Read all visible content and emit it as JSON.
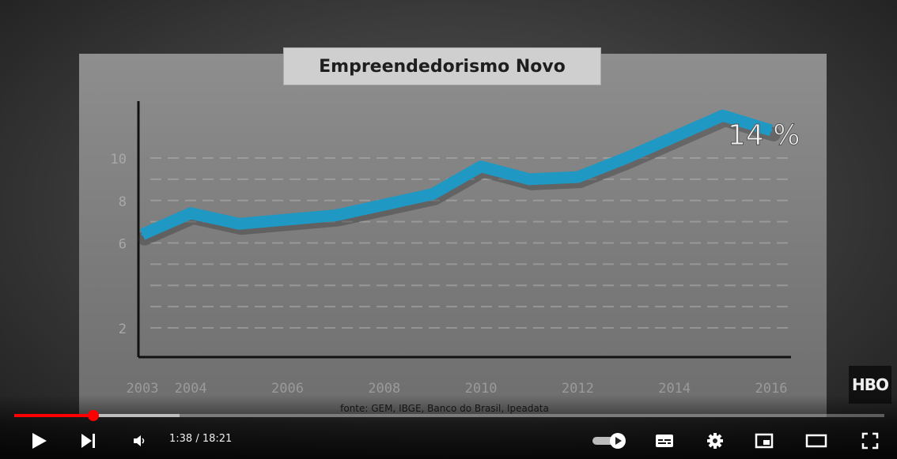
{
  "player": {
    "current_time": "1:38",
    "separator": " / ",
    "duration": "18:21",
    "progress_played": 0.091,
    "progress_buffered": 0.19
  },
  "watermark": {
    "text": "HBO"
  },
  "chart_data": {
    "type": "line",
    "title": "Empreendedorismo Novo",
    "source": "fonte: GEM, IBGE, Banco do Brasil, Ipeadata",
    "annotation": "14 %",
    "x_ticks": [
      "2003",
      "2004",
      "2006",
      "2008",
      "2010",
      "2012",
      "2014",
      "2016"
    ],
    "y_ticks": [
      "10",
      "8",
      "6",
      "2"
    ],
    "x": [
      2003.0,
      2004.0,
      2005.0,
      2006.0,
      2007.0,
      2008.0,
      2009.0,
      2010.0,
      2011.0,
      2012.0,
      2013.0,
      2014.0,
      2015.0,
      2016.0
    ],
    "y": [
      6.4,
      7.4,
      6.9,
      7.1,
      7.3,
      7.8,
      8.3,
      9.6,
      9.0,
      9.1,
      10.0,
      11.0,
      12.0,
      11.3
    ],
    "line_color": "#1f98c4",
    "grid": true
  },
  "icons": {
    "play": "play-icon",
    "next": "next-icon",
    "volume": "volume-icon",
    "autoplay": "autoplay-toggle-icon",
    "subtitles": "subtitles-icon",
    "settings": "gear-icon",
    "miniplayer": "miniplayer-icon",
    "theater": "theater-icon",
    "fullscreen": "fullscreen-icon"
  }
}
